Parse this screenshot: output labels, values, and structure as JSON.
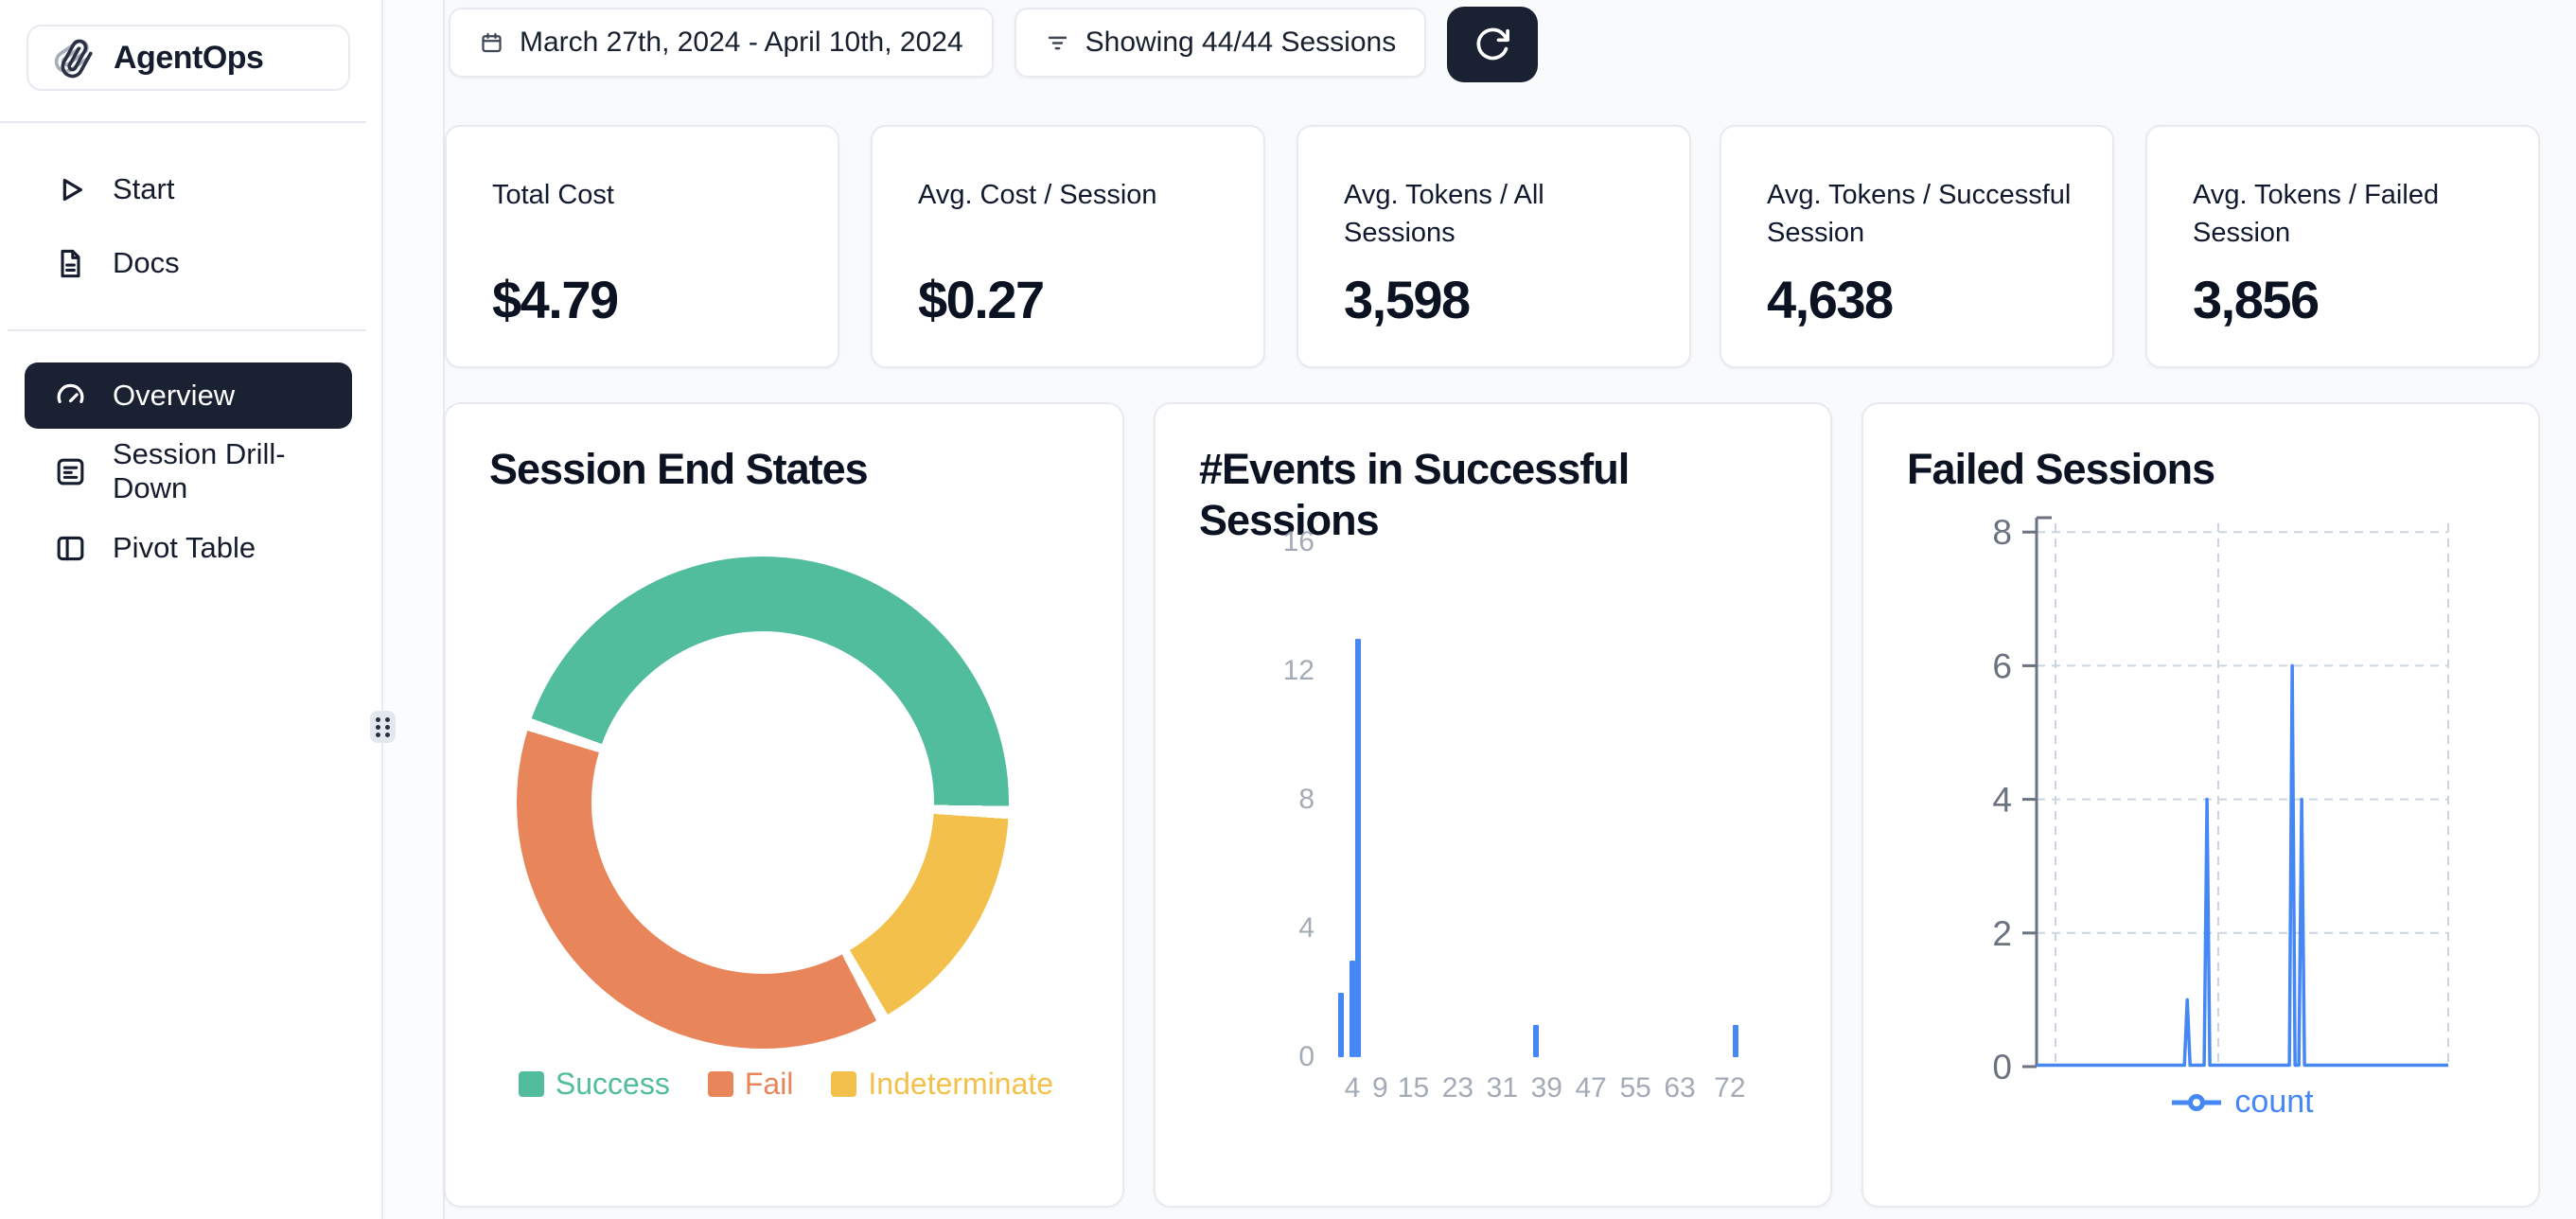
{
  "app": {
    "name": "AgentOps"
  },
  "topbar": {
    "date_range": "March 27th, 2024 - April 10th, 2024",
    "sessions_filter": "Showing 44/44 Sessions"
  },
  "sidebar": {
    "items": [
      {
        "label": "Start",
        "icon": "play-icon",
        "active": false
      },
      {
        "label": "Docs",
        "icon": "document-icon",
        "active": false
      },
      {
        "label": "Overview",
        "icon": "gauge-icon",
        "active": true
      },
      {
        "label": "Session Drill-Down",
        "icon": "list-document-icon",
        "active": false
      },
      {
        "label": "Pivot Table",
        "icon": "pivot-table-icon",
        "active": false
      }
    ]
  },
  "stats": [
    {
      "label": "Total Cost",
      "value": "$4.79"
    },
    {
      "label": "Avg. Cost / Session",
      "value": "$0.27"
    },
    {
      "label": "Avg. Tokens / All Sessions",
      "value": "3,598"
    },
    {
      "label": "Avg. Tokens / Successful Session",
      "value": "4,638"
    },
    {
      "label": "Avg. Tokens / Failed Session",
      "value": "3,856"
    }
  ],
  "chart_data": [
    {
      "type": "pie",
      "donut": true,
      "title": "Session End States",
      "labels": [
        "Success",
        "Fail",
        "Indeterminate"
      ],
      "values_pct": [
        45.5,
        38.2,
        16.3
      ],
      "colors": [
        "#52bd9c",
        "#e8855a",
        "#f3c14b"
      ],
      "draw_order": [
        0,
        2,
        1
      ],
      "start_angle_deg": 290,
      "legend_position": "bottom"
    },
    {
      "type": "bar",
      "title": "#Events in Successful Sessions",
      "x": [
        2,
        4,
        5,
        37,
        73
      ],
      "counts": [
        2,
        3,
        13,
        1,
        1
      ],
      "xlim": [
        0,
        80
      ],
      "x_ticks": [
        4,
        9,
        15,
        23,
        31,
        39,
        47,
        55,
        63,
        72
      ],
      "ylim": [
        0,
        16
      ],
      "y_ticks": [
        0,
        4,
        8,
        12,
        16
      ],
      "bar_color": "#4687f6",
      "grid": "off"
    },
    {
      "type": "line",
      "title": "Failed Sessions",
      "series": [
        {
          "name": "count",
          "color": "#4687f6",
          "spikes": [
            {
              "x_frac": 0.366,
              "value": 1
            },
            {
              "x_frac": 0.414,
              "value": 4
            },
            {
              "x_frac": 0.621,
              "value": 6
            },
            {
              "x_frac": 0.644,
              "value": 4
            }
          ],
          "baseline_value": 0
        }
      ],
      "ylim": [
        0,
        8
      ],
      "y_ticks": [
        0,
        2,
        4,
        6,
        8
      ],
      "grid": "dashed",
      "legend_position": "bottom"
    }
  ],
  "colors": {
    "accent_dark": "#1a2133",
    "page_bg": "#f8fafc",
    "card_border": "#e7ebf0",
    "green": "#52bd9c",
    "orange": "#e8855a",
    "yellow": "#f3c14b",
    "blue": "#4687f6",
    "axis_muted": "#a3abb7",
    "axis_dark": "#6b7280"
  }
}
